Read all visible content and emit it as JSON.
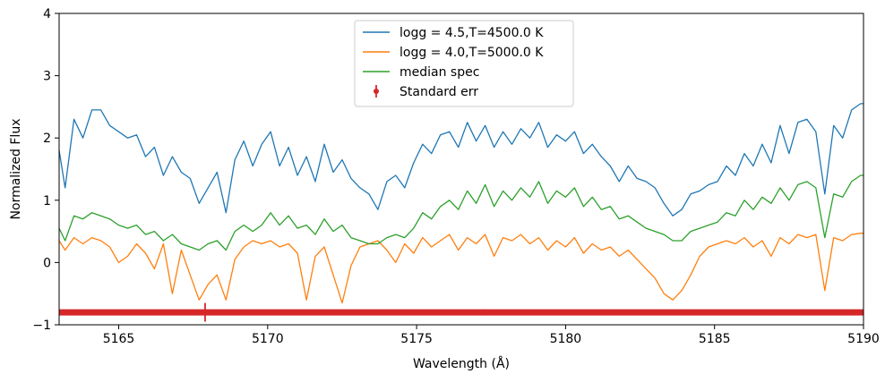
{
  "chart_data": {
    "type": "line",
    "title": "",
    "xlabel": "Wavelength (Å)",
    "ylabel": "Normalized Flux",
    "xlim": [
      5163,
      5190
    ],
    "ylim": [
      -1,
      4
    ],
    "x_ticks": [
      5165,
      5170,
      5175,
      5180,
      5185,
      5190
    ],
    "x_tick_labels": [
      "5165",
      "5170",
      "5175",
      "5180",
      "5185",
      "5190"
    ],
    "y_ticks": [
      -1,
      0,
      1,
      2,
      3,
      4
    ],
    "y_tick_labels": [
      "−1",
      "0",
      "1",
      "2",
      "3",
      "4"
    ],
    "grid": false,
    "legend_position": "top-center",
    "series": [
      {
        "name": "logg = 4.5,T=4500.0 K",
        "color": "#1f77b4",
        "style": "line",
        "x": [
          5163.0,
          5163.2,
          5163.5,
          5163.8,
          5164.1,
          5164.4,
          5164.7,
          5165.0,
          5165.3,
          5165.6,
          5165.9,
          5166.2,
          5166.5,
          5166.8,
          5167.1,
          5167.4,
          5167.7,
          5168.0,
          5168.3,
          5168.6,
          5168.9,
          5169.2,
          5169.5,
          5169.8,
          5170.1,
          5170.4,
          5170.7,
          5171.0,
          5171.3,
          5171.6,
          5171.9,
          5172.2,
          5172.5,
          5172.8,
          5173.1,
          5173.4,
          5173.7,
          5174.0,
          5174.3,
          5174.6,
          5174.9,
          5175.2,
          5175.5,
          5175.8,
          5176.1,
          5176.4,
          5176.7,
          5177.0,
          5177.3,
          5177.6,
          5177.9,
          5178.2,
          5178.5,
          5178.8,
          5179.1,
          5179.4,
          5179.7,
          5180.0,
          5180.3,
          5180.6,
          5180.9,
          5181.2,
          5181.5,
          5181.8,
          5182.1,
          5182.4,
          5182.7,
          5183.0,
          5183.3,
          5183.6,
          5183.9,
          5184.2,
          5184.5,
          5184.8,
          5185.1,
          5185.4,
          5185.7,
          5186.0,
          5186.3,
          5186.6,
          5186.9,
          5187.2,
          5187.5,
          5187.8,
          5188.1,
          5188.4,
          5188.7,
          5189.0,
          5189.3,
          5189.6,
          5189.9,
          5190.0
        ],
        "y": [
          1.8,
          1.2,
          2.3,
          2.0,
          2.45,
          2.45,
          2.2,
          2.1,
          2.0,
          2.05,
          1.7,
          1.85,
          1.4,
          1.7,
          1.45,
          1.35,
          0.95,
          1.2,
          1.45,
          0.8,
          1.65,
          1.95,
          1.55,
          1.9,
          2.1,
          1.55,
          1.85,
          1.4,
          1.7,
          1.3,
          1.9,
          1.45,
          1.65,
          1.35,
          1.2,
          1.1,
          0.85,
          1.3,
          1.4,
          1.2,
          1.6,
          1.9,
          1.75,
          2.05,
          2.1,
          1.85,
          2.25,
          1.95,
          2.2,
          1.85,
          2.1,
          1.9,
          2.15,
          2.0,
          2.25,
          1.85,
          2.05,
          1.95,
          2.1,
          1.75,
          1.9,
          1.7,
          1.55,
          1.3,
          1.55,
          1.35,
          1.3,
          1.2,
          0.95,
          0.75,
          0.85,
          1.1,
          1.15,
          1.25,
          1.3,
          1.55,
          1.4,
          1.75,
          1.55,
          1.9,
          1.6,
          2.2,
          1.75,
          2.25,
          2.3,
          2.1,
          1.1,
          2.2,
          2.0,
          2.45,
          2.55,
          2.55
        ]
      },
      {
        "name": "logg = 4.0,T=5000.0 K",
        "color": "#ff7f0e",
        "style": "line",
        "x": [
          5163.0,
          5163.2,
          5163.5,
          5163.8,
          5164.1,
          5164.4,
          5164.7,
          5165.0,
          5165.3,
          5165.6,
          5165.9,
          5166.2,
          5166.5,
          5166.8,
          5167.1,
          5167.4,
          5167.7,
          5168.0,
          5168.3,
          5168.6,
          5168.9,
          5169.2,
          5169.5,
          5169.8,
          5170.1,
          5170.4,
          5170.7,
          5171.0,
          5171.3,
          5171.6,
          5171.9,
          5172.2,
          5172.5,
          5172.8,
          5173.1,
          5173.4,
          5173.7,
          5174.0,
          5174.3,
          5174.6,
          5174.9,
          5175.2,
          5175.5,
          5175.8,
          5176.1,
          5176.4,
          5176.7,
          5177.0,
          5177.3,
          5177.6,
          5177.9,
          5178.2,
          5178.5,
          5178.8,
          5179.1,
          5179.4,
          5179.7,
          5180.0,
          5180.3,
          5180.6,
          5180.9,
          5181.2,
          5181.5,
          5181.8,
          5182.1,
          5182.4,
          5182.7,
          5183.0,
          5183.3,
          5183.6,
          5183.9,
          5184.2,
          5184.5,
          5184.8,
          5185.1,
          5185.4,
          5185.7,
          5186.0,
          5186.3,
          5186.6,
          5186.9,
          5187.2,
          5187.5,
          5187.8,
          5188.1,
          5188.4,
          5188.7,
          5189.0,
          5189.3,
          5189.6,
          5189.9,
          5190.0
        ],
        "y": [
          0.35,
          0.2,
          0.4,
          0.3,
          0.4,
          0.35,
          0.25,
          0.0,
          0.1,
          0.3,
          0.15,
          -0.1,
          0.3,
          -0.5,
          0.2,
          -0.2,
          -0.6,
          -0.35,
          -0.2,
          -0.6,
          0.05,
          0.25,
          0.35,
          0.3,
          0.35,
          0.25,
          0.3,
          0.15,
          -0.6,
          0.1,
          0.25,
          -0.2,
          -0.65,
          -0.05,
          0.25,
          0.3,
          0.35,
          0.2,
          0.0,
          0.3,
          0.15,
          0.4,
          0.25,
          0.35,
          0.45,
          0.2,
          0.4,
          0.3,
          0.45,
          0.1,
          0.4,
          0.35,
          0.45,
          0.3,
          0.4,
          0.2,
          0.35,
          0.25,
          0.4,
          0.15,
          0.3,
          0.2,
          0.25,
          0.1,
          0.2,
          0.05,
          -0.1,
          -0.25,
          -0.5,
          -0.6,
          -0.45,
          -0.2,
          0.1,
          0.25,
          0.3,
          0.35,
          0.3,
          0.4,
          0.25,
          0.35,
          0.1,
          0.4,
          0.3,
          0.45,
          0.4,
          0.45,
          -0.45,
          0.4,
          0.35,
          0.45,
          0.47,
          0.47
        ]
      },
      {
        "name": "median spec",
        "color": "#2ca02c",
        "style": "line",
        "x": [
          5163.0,
          5163.2,
          5163.5,
          5163.8,
          5164.1,
          5164.4,
          5164.7,
          5165.0,
          5165.3,
          5165.6,
          5165.9,
          5166.2,
          5166.5,
          5166.8,
          5167.1,
          5167.4,
          5167.7,
          5168.0,
          5168.3,
          5168.6,
          5168.9,
          5169.2,
          5169.5,
          5169.8,
          5170.1,
          5170.4,
          5170.7,
          5171.0,
          5171.3,
          5171.6,
          5171.9,
          5172.2,
          5172.5,
          5172.8,
          5173.1,
          5173.4,
          5173.7,
          5174.0,
          5174.3,
          5174.6,
          5174.9,
          5175.2,
          5175.5,
          5175.8,
          5176.1,
          5176.4,
          5176.7,
          5177.0,
          5177.3,
          5177.6,
          5177.9,
          5178.2,
          5178.5,
          5178.8,
          5179.1,
          5179.4,
          5179.7,
          5180.0,
          5180.3,
          5180.6,
          5180.9,
          5181.2,
          5181.5,
          5181.8,
          5182.1,
          5182.4,
          5182.7,
          5183.0,
          5183.3,
          5183.6,
          5183.9,
          5184.2,
          5184.5,
          5184.8,
          5185.1,
          5185.4,
          5185.7,
          5186.0,
          5186.3,
          5186.6,
          5186.9,
          5187.2,
          5187.5,
          5187.8,
          5188.1,
          5188.4,
          5188.7,
          5189.0,
          5189.3,
          5189.6,
          5189.9,
          5190.0
        ],
        "y": [
          0.55,
          0.35,
          0.75,
          0.7,
          0.8,
          0.75,
          0.7,
          0.6,
          0.55,
          0.6,
          0.45,
          0.5,
          0.35,
          0.45,
          0.3,
          0.25,
          0.2,
          0.3,
          0.35,
          0.2,
          0.5,
          0.6,
          0.5,
          0.6,
          0.8,
          0.6,
          0.75,
          0.55,
          0.6,
          0.45,
          0.7,
          0.5,
          0.6,
          0.4,
          0.35,
          0.3,
          0.3,
          0.4,
          0.45,
          0.4,
          0.55,
          0.8,
          0.7,
          0.9,
          1.0,
          0.85,
          1.15,
          0.95,
          1.25,
          0.9,
          1.15,
          1.0,
          1.2,
          1.05,
          1.3,
          0.95,
          1.15,
          1.05,
          1.2,
          0.9,
          1.05,
          0.85,
          0.9,
          0.7,
          0.75,
          0.65,
          0.55,
          0.5,
          0.45,
          0.35,
          0.35,
          0.5,
          0.55,
          0.6,
          0.65,
          0.8,
          0.75,
          1.0,
          0.85,
          1.05,
          0.95,
          1.2,
          1.0,
          1.25,
          1.3,
          1.2,
          0.4,
          1.1,
          1.05,
          1.3,
          1.4,
          1.4
        ]
      },
      {
        "name": "Standard err",
        "color": "#d62728",
        "style": "errorbar",
        "y_level": -0.8,
        "points": [
          {
            "x": 5167.9,
            "err": 0.15
          },
          {
            "x": 5177.3,
            "err": 0.05
          },
          {
            "x": 5186.3,
            "err": 0.04
          },
          {
            "x": 5187.0,
            "err": 0.04
          }
        ]
      }
    ]
  }
}
